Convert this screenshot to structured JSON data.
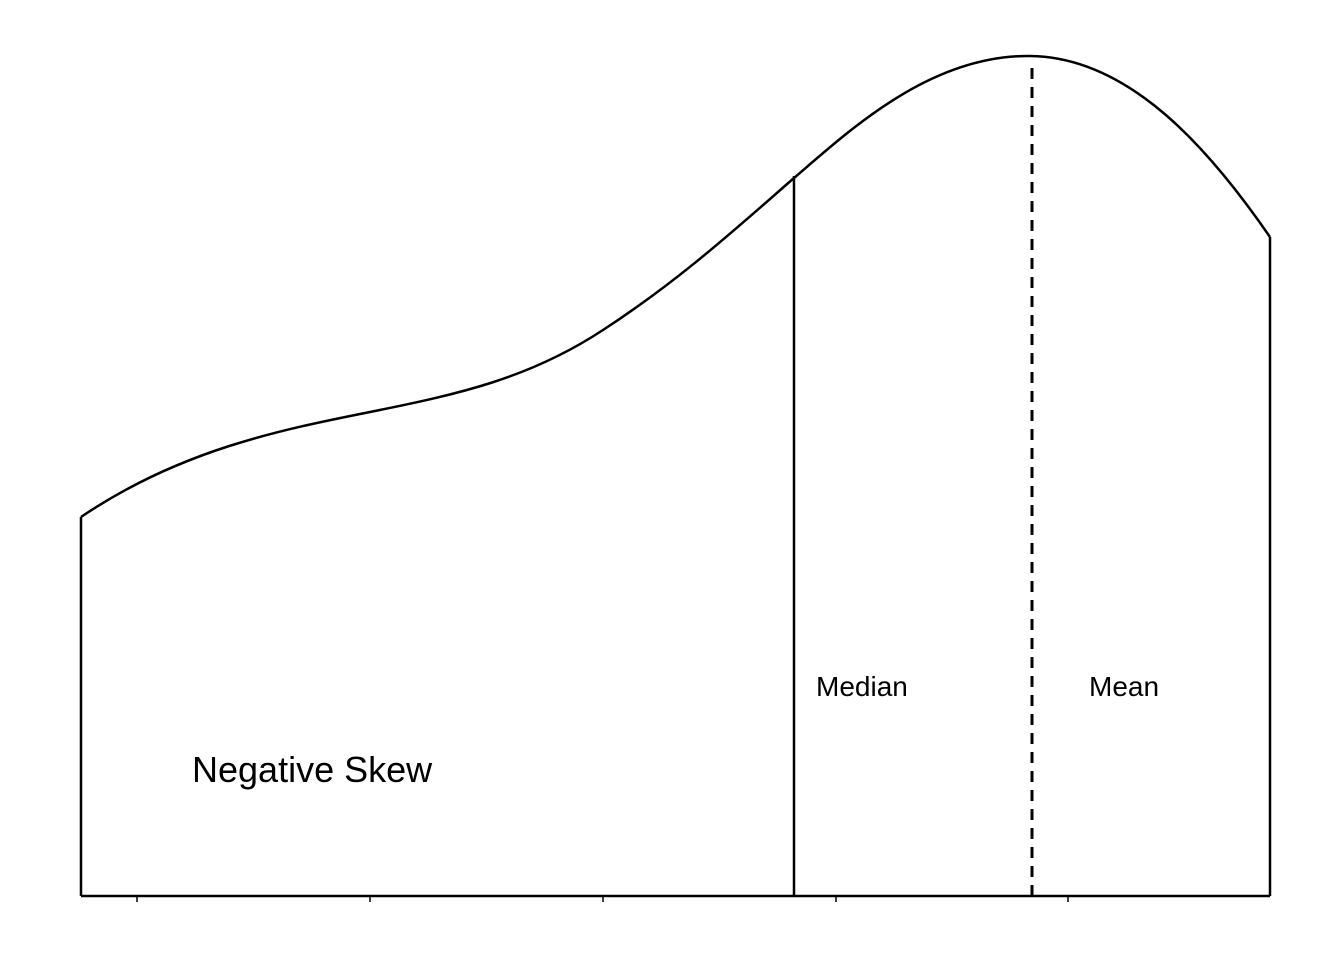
{
  "diagram": {
    "title": "Negative Skew",
    "median_label": "Median",
    "mean_label": "Mean",
    "colors": {
      "stroke": "#000000",
      "background": "#ffffff"
    }
  }
}
